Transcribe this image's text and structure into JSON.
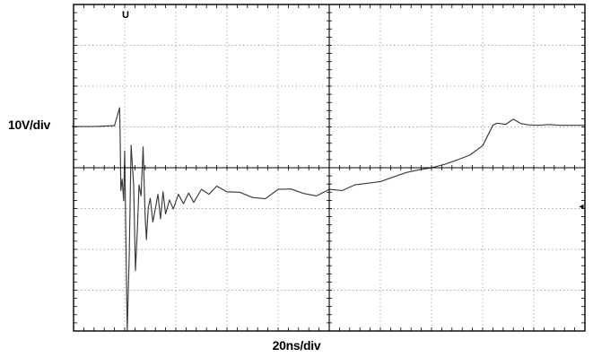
{
  "chart_data": {
    "type": "line",
    "title": "",
    "ylabel": "10V/div",
    "xlabel": "20ns/div",
    "grid": true,
    "divisions": {
      "x": 10,
      "y": 8
    },
    "xlim": [
      0,
      200
    ],
    "ylim": [
      -40,
      40
    ],
    "x_unit": "ns",
    "y_unit": "V",
    "trigger_marker": "U",
    "colors": {
      "trace": "#3a3a3a",
      "grid": "#9a9a9a",
      "frame": "#000000"
    },
    "series": [
      {
        "x": [
          0,
          8,
          16,
          18,
          18.2,
          18.5,
          19,
          19.6,
          20,
          20.3,
          20.6,
          21,
          21.8,
          22.5,
          23.5,
          24.2,
          25,
          25.6,
          26.4,
          27.2,
          28,
          28.5,
          29.2,
          30,
          31,
          32,
          33,
          34,
          35,
          36,
          37.5,
          39,
          41,
          43,
          45,
          47,
          50,
          53,
          56,
          60,
          65,
          70,
          75,
          80,
          85,
          90,
          95,
          100,
          105,
          110,
          115,
          120,
          125,
          130,
          135,
          140,
          145,
          150,
          155,
          160,
          164,
          165.5,
          167,
          169,
          172,
          175,
          178,
          182,
          186,
          190,
          195,
          200
        ],
        "y": [
          10.1,
          10.1,
          10.3,
          14.7,
          8.5,
          -5.6,
          -2.8,
          -8.1,
          4.1,
          -9.7,
          -23.6,
          -40,
          -20.8,
          5.5,
          -4.2,
          -25.2,
          -14.5,
          -4.2,
          -6.9,
          5.1,
          -12,
          -17.6,
          -9.8,
          -7.5,
          -13.3,
          -10,
          -6.5,
          -12.5,
          -5.9,
          -11.3,
          -7.9,
          -10.1,
          -6.5,
          -8.8,
          -6.2,
          -8.5,
          -5.3,
          -6.5,
          -4.5,
          -5.9,
          -6,
          -7.3,
          -7.6,
          -5.3,
          -5.2,
          -6.3,
          -6.9,
          -5.3,
          -5.6,
          -4.2,
          -3.8,
          -3.4,
          -2.3,
          -1.2,
          -0.5,
          0,
          0.8,
          1.9,
          3.1,
          5.4,
          10.4,
          10.9,
          10.8,
          10.6,
          11.9,
          10.8,
          10.5,
          10.4,
          10.6,
          10.4,
          10.4,
          10.4
        ]
      }
    ]
  }
}
